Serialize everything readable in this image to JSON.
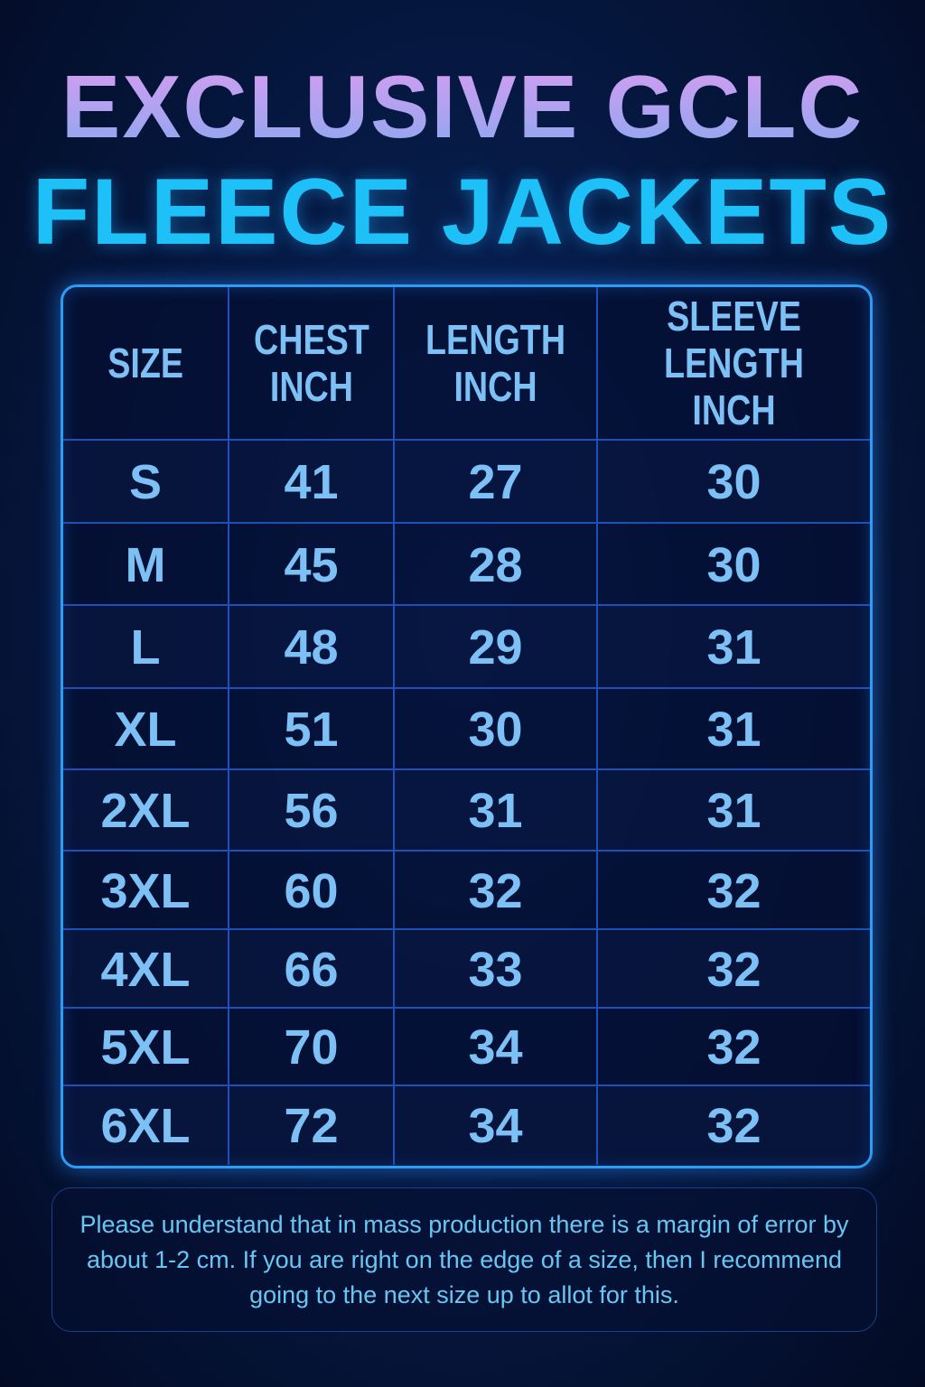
{
  "title": {
    "line1": "EXCLUSIVE GCLC",
    "line2": "FLEECE JACKETS"
  },
  "colors": {
    "title_line1": "#c79cf0",
    "title_line2": "#1ec0f8",
    "cell_text": "#7cc0f5",
    "border": "#2d9cf5"
  },
  "table": {
    "headers": [
      "SIZE",
      "CHEST\nINCH",
      "LENGTH\nINCH",
      "SLEEVE\nLENGTH INCH"
    ],
    "rows": [
      [
        "S",
        "41",
        "27",
        "30"
      ],
      [
        "M",
        "45",
        "28",
        "30"
      ],
      [
        "L",
        "48",
        "29",
        "31"
      ],
      [
        "XL",
        "51",
        "30",
        "31"
      ],
      [
        "2XL",
        "56",
        "31",
        "31"
      ],
      [
        "3XL",
        "60",
        "32",
        "32"
      ],
      [
        "4XL",
        "66",
        "33",
        "32"
      ],
      [
        "5XL",
        "70",
        "34",
        "32"
      ],
      [
        "6XL",
        "72",
        "34",
        "32"
      ]
    ]
  },
  "note": "Please understand that in mass production there is a margin of error by about 1-2 cm. If you are right on the edge of a size, then I recommend going to the next size up to allot for this."
}
